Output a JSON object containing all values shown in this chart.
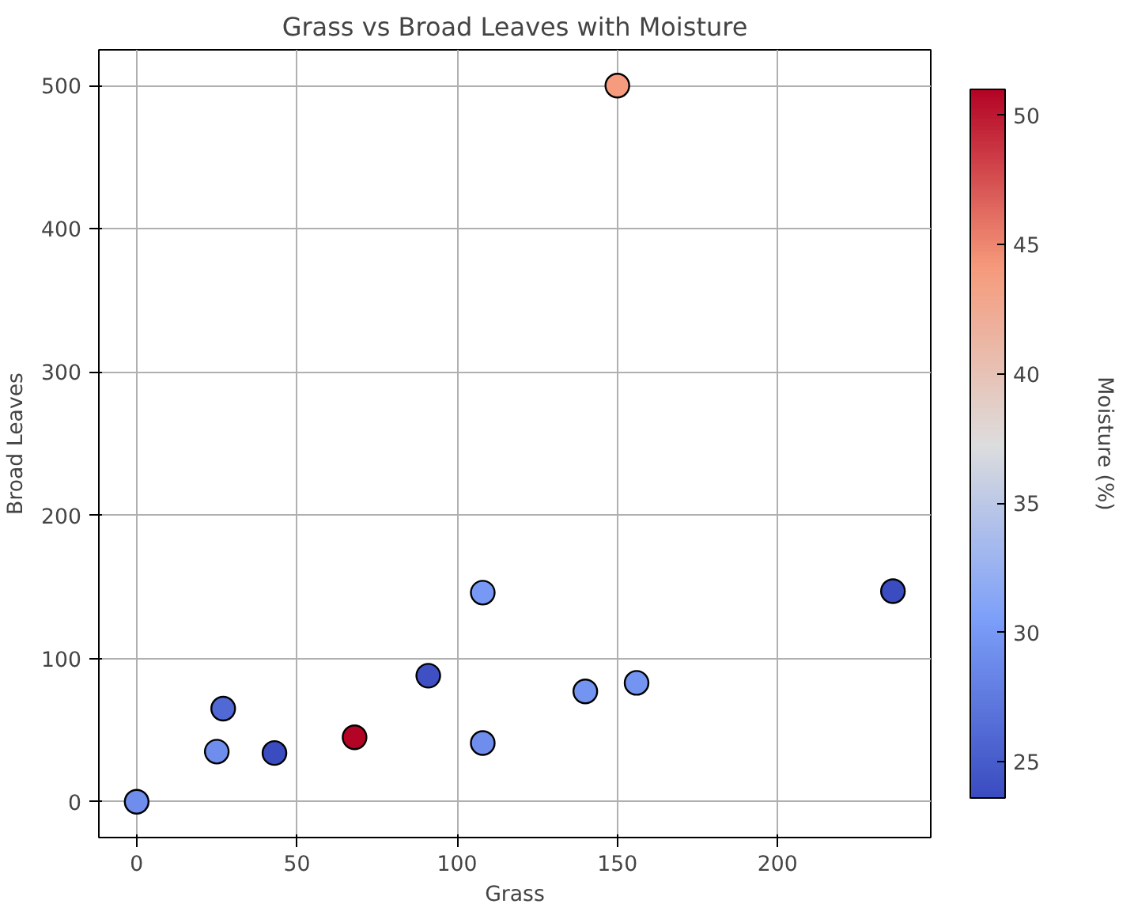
{
  "chart_data": {
    "type": "scatter",
    "title": "Grass vs Broad Leaves with Moisture",
    "xlabel": "Grass",
    "ylabel": "Broad Leaves",
    "clabel": "Moisture (%)",
    "x": [
      0,
      25,
      27,
      43,
      68,
      91,
      108,
      108,
      140,
      156,
      150,
      236
    ],
    "values": [
      0,
      35,
      65,
      34,
      45,
      88,
      146,
      41,
      77,
      83,
      500,
      147
    ],
    "cvalues": [
      29,
      29,
      26,
      23.6,
      51,
      24,
      30,
      29,
      29.5,
      29.5,
      44,
      23.6
    ],
    "xlim": [
      -11.8,
      247.8
    ],
    "ylim": [
      -25,
      525
    ],
    "xticks": [
      0,
      50,
      100,
      150,
      200
    ],
    "yticks": [
      0,
      100,
      200,
      300,
      400,
      500
    ],
    "clim": [
      23.6,
      51
    ],
    "cticks": [
      25,
      30,
      35,
      40,
      45,
      50
    ],
    "grid": true,
    "marker": "circle"
  }
}
